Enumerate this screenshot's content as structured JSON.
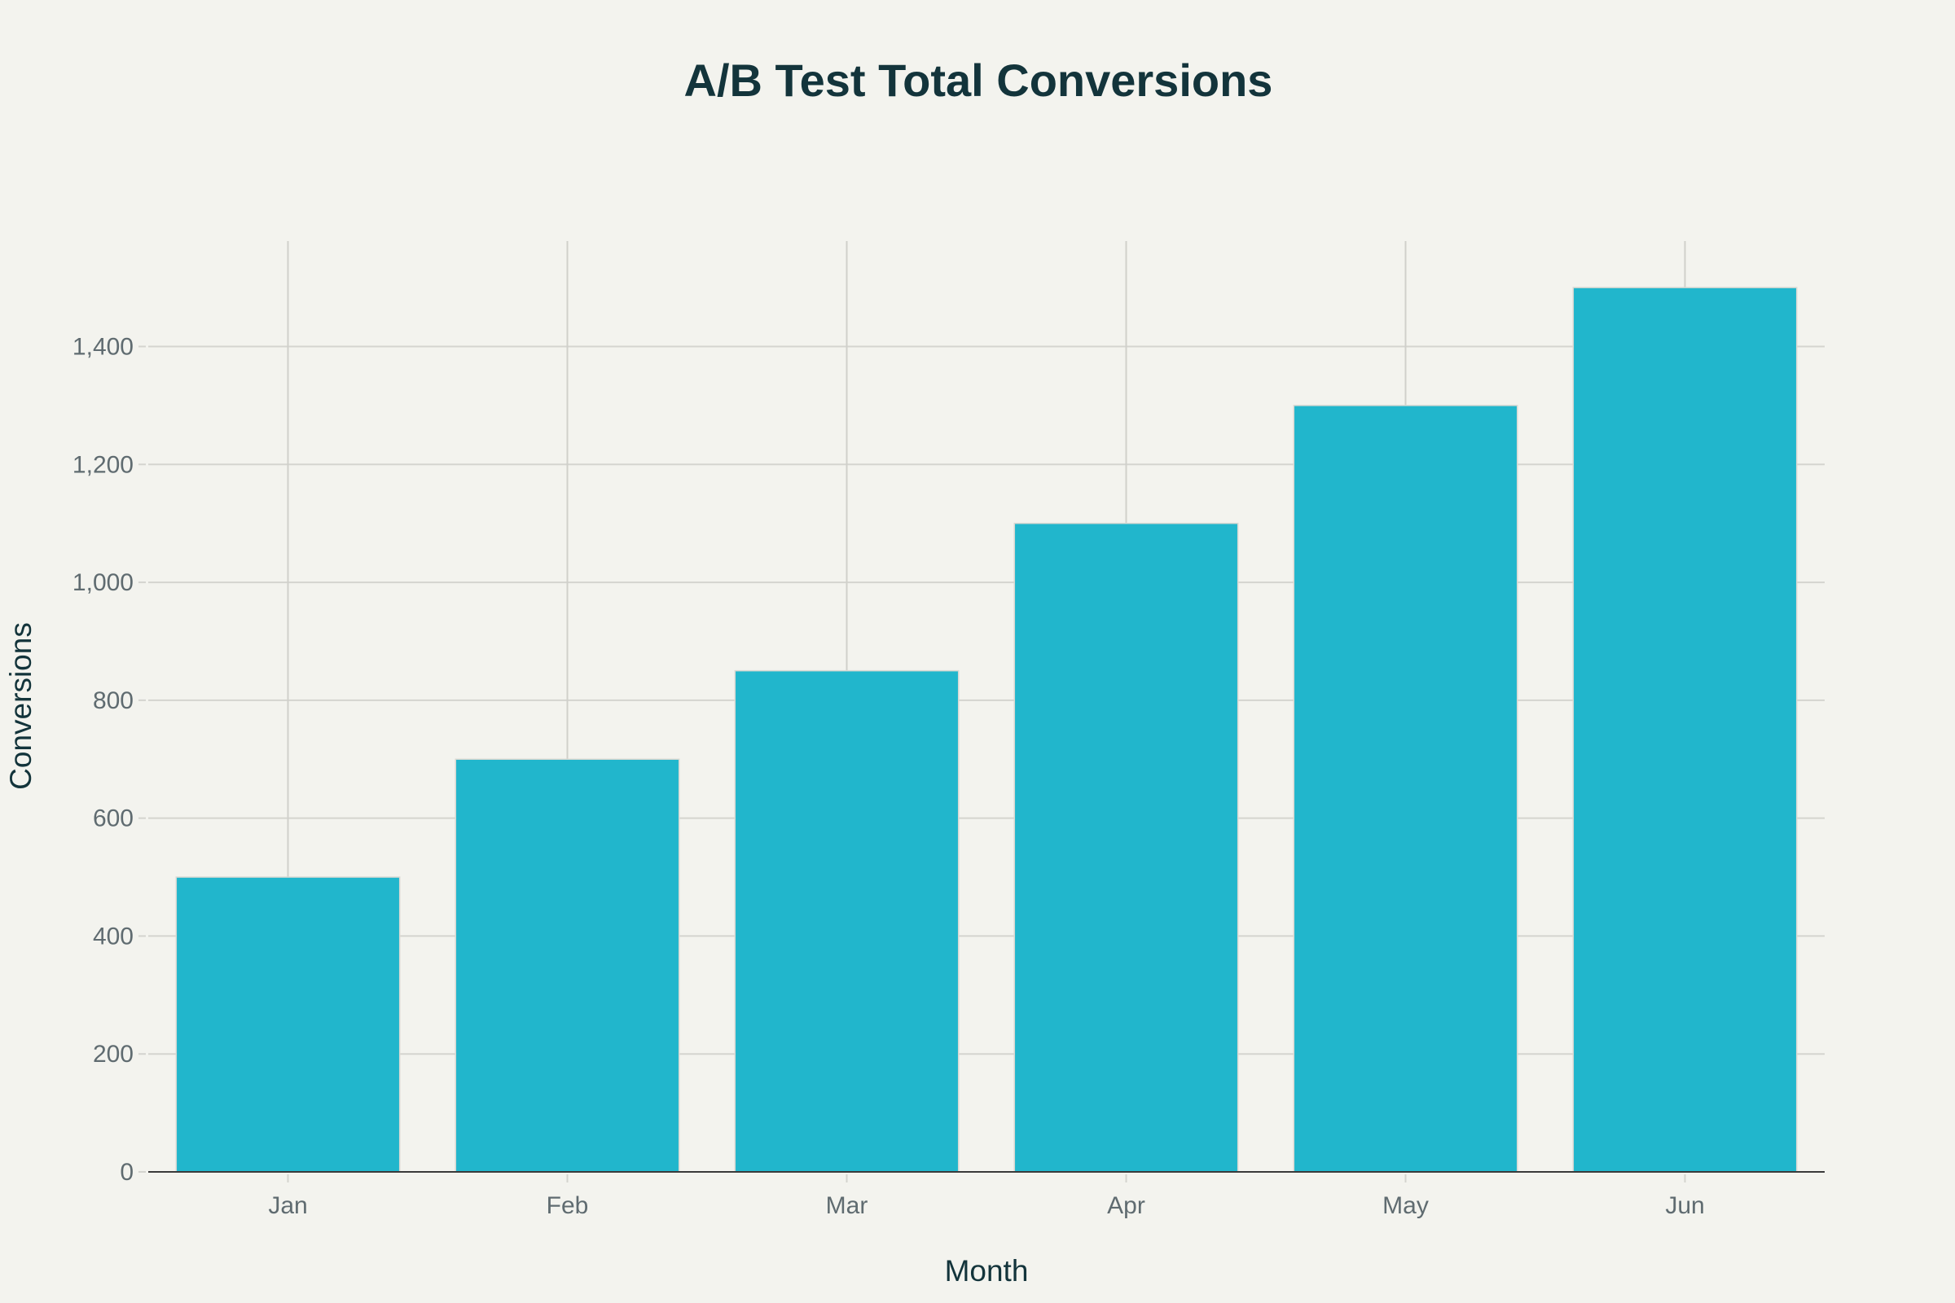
{
  "chart_data": {
    "type": "bar",
    "title": "A/B Test Total Conversions",
    "xlabel": "Month",
    "ylabel": "Conversions",
    "categories": [
      "Jan",
      "Feb",
      "Mar",
      "Apr",
      "May",
      "Jun"
    ],
    "values": [
      500,
      700,
      850,
      1100,
      1300,
      1500
    ],
    "ylim": [
      0,
      1580
    ],
    "yticks": [
      0,
      200,
      400,
      600,
      800,
      1000,
      1200,
      1400
    ],
    "ytick_labels": [
      "0",
      "200",
      "400",
      "600",
      "800",
      "1,000",
      "1,200",
      "1,400"
    ],
    "grid": true,
    "legend": "none",
    "colors": {
      "bar": "#21b6cc",
      "background": "#f3f3ee",
      "text": "#13343b"
    }
  }
}
